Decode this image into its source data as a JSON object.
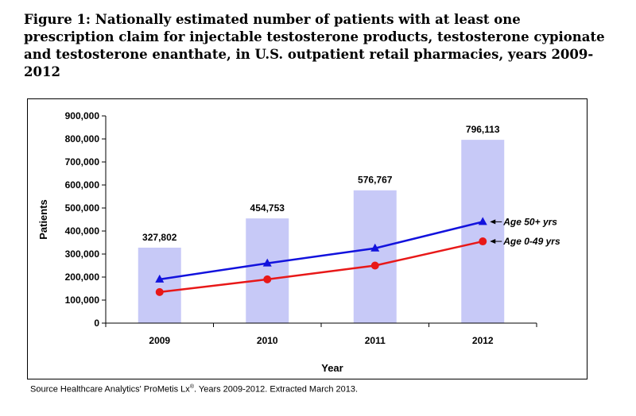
{
  "figure": {
    "title": "Figure 1: Nationally estimated number of patients with at least one prescription claim for injectable testosterone products, testosterone cypionate and testosterone enanthate, in U.S. outpatient retail pharmacies, years 2009-2012",
    "source_prefix": "Source Healthcare Analytics' ProMetis Lx",
    "source_sup": "®",
    "source_suffix": ". Years 2009-2012. Extracted March 2013."
  },
  "colors": {
    "bar": "#c7c9f7",
    "age50": "#1212dd",
    "age049": "#e81818"
  },
  "chart_data": {
    "type": "bar",
    "categories": [
      "2009",
      "2010",
      "2011",
      "2012"
    ],
    "bar_values": [
      327802,
      454753,
      576767,
      796113
    ],
    "bar_labels": [
      "327,802",
      "454,753",
      "576,767",
      "796,113"
    ],
    "series": [
      {
        "name": "Age 50+ yrs",
        "values": [
          190000,
          260000,
          325000,
          440000
        ],
        "marker": "triangle"
      },
      {
        "name": "Age 0-49 yrs",
        "values": [
          135000,
          190000,
          250000,
          355000
        ],
        "marker": "circle"
      }
    ],
    "series_labels": [
      "Age 50+ yrs",
      "Age 0-49 yrs"
    ],
    "xlabel": "Year",
    "ylabel": "Patients",
    "ylim": [
      0,
      900000
    ],
    "y_ticks": [
      0,
      100000,
      200000,
      300000,
      400000,
      500000,
      600000,
      700000,
      800000,
      900000
    ],
    "y_tick_labels": [
      "0",
      "100,000",
      "200,000",
      "300,000",
      "400,000",
      "500,000",
      "600,000",
      "700,000",
      "800,000",
      "900,000"
    ],
    "grid": false
  }
}
